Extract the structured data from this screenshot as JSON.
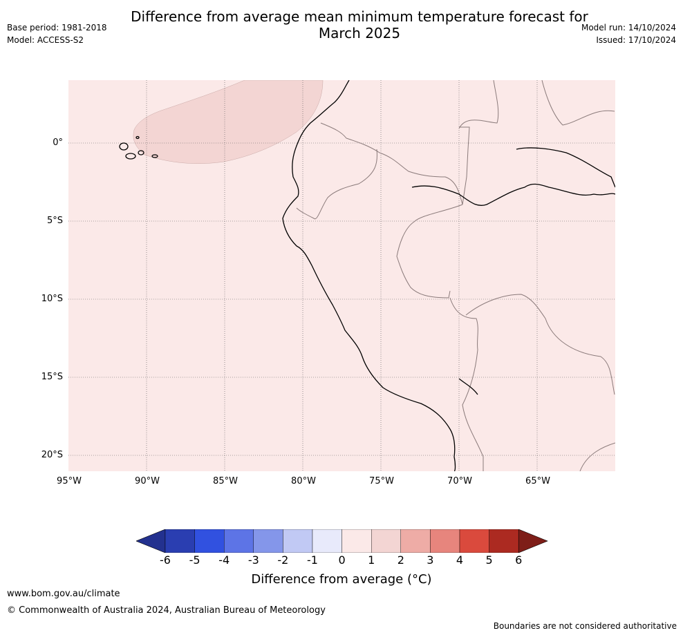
{
  "title_line1": "Difference from average mean minimum temperature forecast for",
  "title_line2": "March 2025",
  "meta_left": {
    "base_period": "Base period: 1981-2018",
    "model": "Model: ACCESS-S2"
  },
  "meta_right": {
    "model_run": "Model run: 14/10/2024",
    "issued": "Issued: 17/10/2024"
  },
  "map": {
    "background_color": "#fbe9e8",
    "anomaly_patch_color": "#f3d5d3",
    "lat_labels": [
      "0°",
      "5°S",
      "10°S",
      "15°S",
      "20°S"
    ],
    "lon_labels": [
      "95°W",
      "90°W",
      "85°W",
      "80°W",
      "75°W",
      "70°W",
      "65°W"
    ]
  },
  "colorbar": {
    "ticks": [
      "-6",
      "-5",
      "-4",
      "-3",
      "-2",
      "-1",
      "0",
      "1",
      "2",
      "3",
      "4",
      "5",
      "6"
    ],
    "colors": [
      "#23318f",
      "#2a3eb1",
      "#3151e0",
      "#5d74e6",
      "#8496ea",
      "#c1c9f4",
      "#e8eafb",
      "#fbe9e8",
      "#f3d5d3",
      "#eeaca6",
      "#e7857d",
      "#da4a3d",
      "#ac2a21",
      "#7e1e18"
    ],
    "label": "Difference from average (°C)"
  },
  "footer": {
    "url": "www.bom.gov.au/climate",
    "copyright": "© Commonwealth of Australia 2024, Australian Bureau of Meteorology",
    "disclaimer": "Boundaries are not considered authoritative"
  }
}
